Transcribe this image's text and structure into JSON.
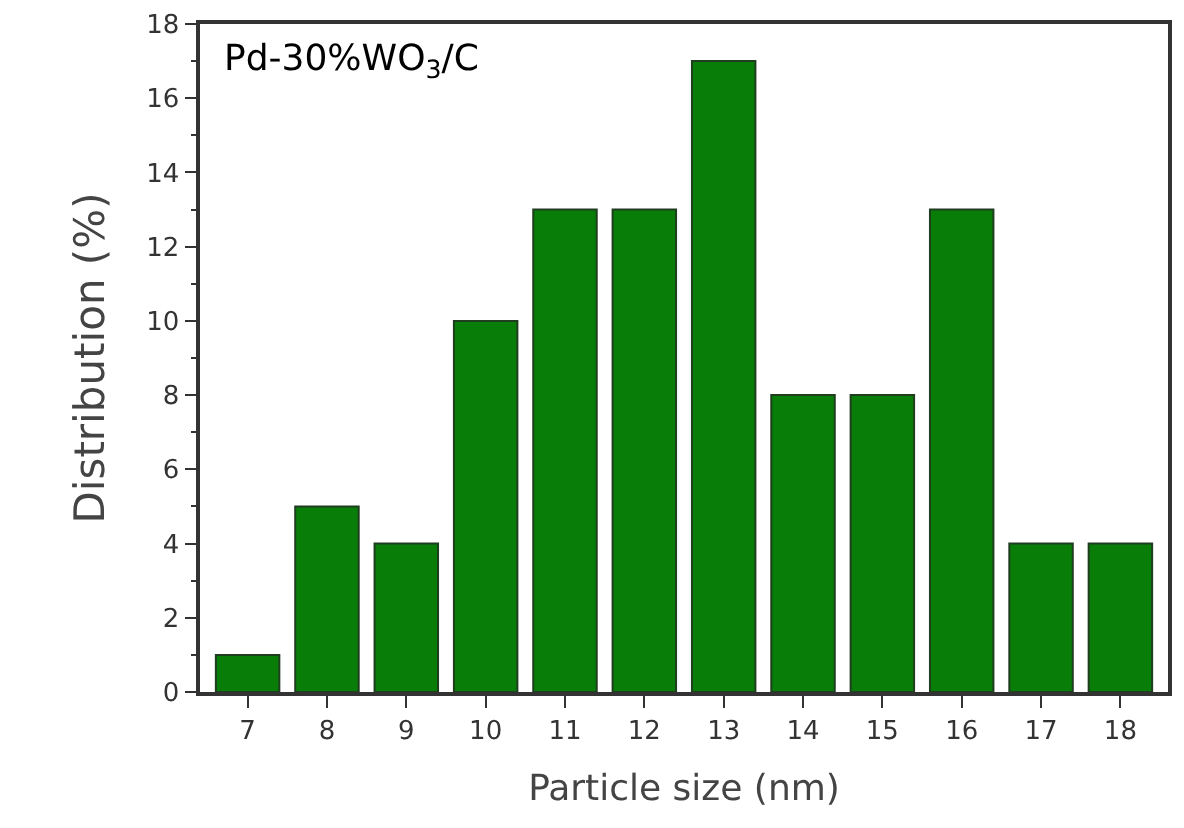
{
  "chart_data": {
    "type": "bar",
    "xlabel": "Particle size (nm)",
    "ylabel": "Distribution (%)",
    "categories": [
      "7",
      "8",
      "9",
      "10",
      "11",
      "12",
      "13",
      "14",
      "15",
      "16",
      "17",
      "18"
    ],
    "values": [
      1,
      5,
      4,
      10,
      13,
      13,
      17,
      8,
      8,
      13,
      4,
      4
    ],
    "color": "#087d08",
    "ylim": [
      0,
      18
    ],
    "yticks": [
      0,
      2,
      4,
      6,
      8,
      10,
      12,
      14,
      16,
      18
    ],
    "annotations": [
      "Pd-30%WO$_{3}$/C"
    ]
  }
}
